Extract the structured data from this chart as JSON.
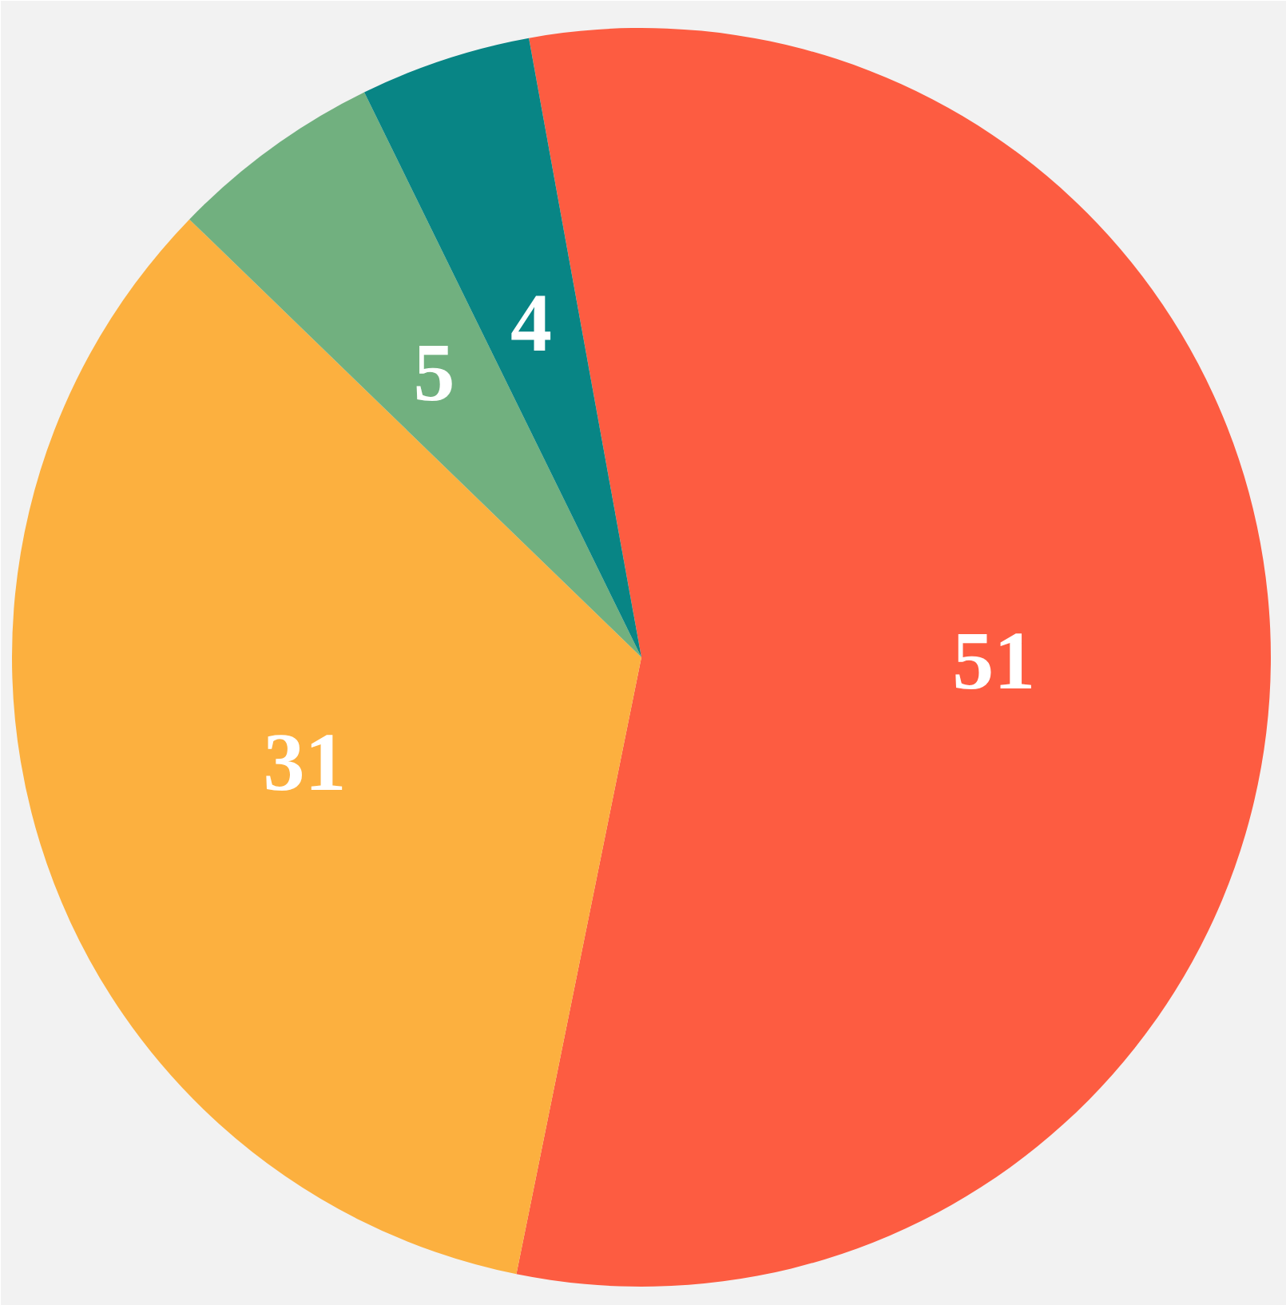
{
  "chart_data": {
    "type": "pie",
    "categories": [
      null,
      null,
      null,
      null
    ],
    "values": [
      51,
      31,
      5,
      4
    ],
    "colors": [
      "#fd5c41",
      "#fcb03f",
      "#71b07f",
      "#088585"
    ],
    "data_labels": true
  }
}
